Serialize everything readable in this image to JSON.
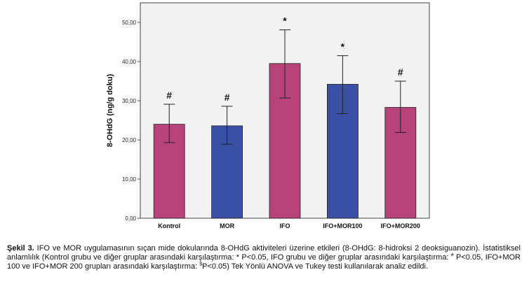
{
  "chart_data": {
    "type": "bar",
    "ylabel": "8-OHdG (ng/g doku)",
    "ylim": [
      0,
      55
    ],
    "yticks": [
      "0,00",
      "10,00",
      "20,00",
      "30,00",
      "40,00",
      "50,00"
    ],
    "ytick_values": [
      0,
      10,
      20,
      30,
      40,
      50
    ],
    "grid": false,
    "categories": [
      "Kontrol",
      "MOR",
      "IFO",
      "IFO+MOR100",
      "IFO+MOR200"
    ],
    "values": [
      24.0,
      23.6,
      39.5,
      34.2,
      28.3
    ],
    "error_low": [
      19.3,
      18.9,
      30.7,
      26.7,
      21.9
    ],
    "error_high": [
      29.1,
      28.6,
      48.1,
      41.5,
      35.0
    ],
    "markers": [
      "#",
      "#",
      "*",
      "*",
      "#"
    ],
    "bar_colors": [
      "#b8427a",
      "#3a4fa6",
      "#b8427a",
      "#3a4fa6",
      "#b8427a"
    ]
  },
  "caption": {
    "label": "Şekil 3.",
    "text_part1": " IFO ve MOR uygulamasının sıçan mide dokularında 8-OHdG aktiviteleri üzerine etkileri (8-OHdG: 8-hidroksi 2 deoksiguanozin). İstatistiksel anlamlılık (Kontrol grubu ve diğer gruplar arasındaki karşılaştırma: * P<0.05, IFO grubu ve diğer gruplar arasındaki karşılaştırma: ",
    "sup_hash": "#",
    "text_part2": " P<0.05, IFO+MOR 100 ve IFO+MOR 200 grupları arasındaki karşılaştırma: ",
    "sup_dollar": "$",
    "text_part3": "P<0.05) Tek Yönlü ANOVA ve Tukey testi kullanılarak analiz edildi."
  }
}
